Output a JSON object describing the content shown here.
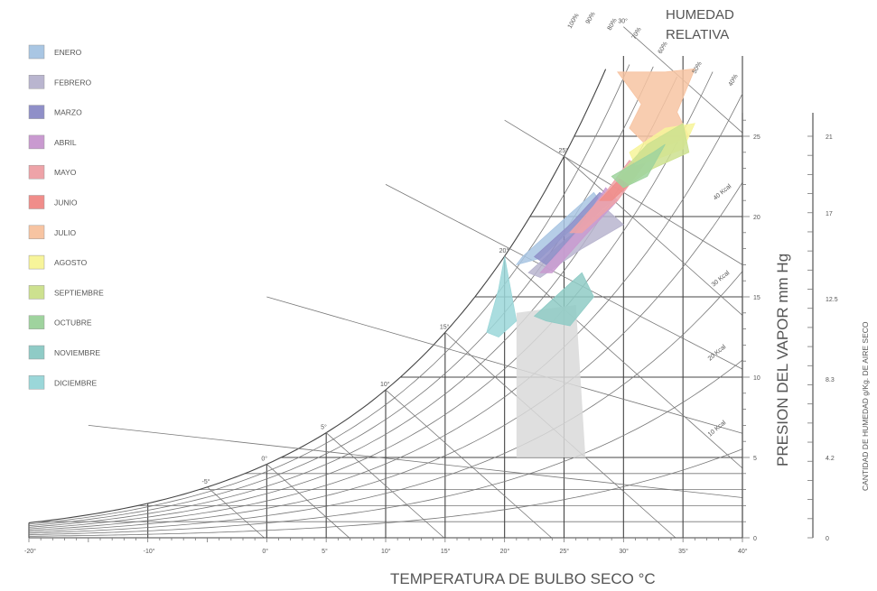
{
  "chart_data": {
    "type": "psychrometric",
    "title": "",
    "xlabel": "TEMPERATURA  DE  BULBO  SECO °C",
    "ylabel_right": "PRESION DEL VAPOR   mm  Hg",
    "ylabel_far_right": "CANTIDAD DE HUMEDAD  g/Kg. DE AIRE SECO",
    "rh_title": [
      "HUMEDAD",
      "RELATIVA"
    ],
    "x_ticks": [
      {
        "value": -20,
        "label": "-20°"
      },
      {
        "value": -10,
        "label": "-10°"
      },
      {
        "value": 0,
        "label": "0°"
      },
      {
        "value": 5,
        "label": "5°"
      },
      {
        "value": 10,
        "label": "10°"
      },
      {
        "value": 15,
        "label": "15°"
      },
      {
        "value": 20,
        "label": "20°"
      },
      {
        "value": 25,
        "label": "25°"
      },
      {
        "value": 30,
        "label": "30°"
      },
      {
        "value": 35,
        "label": "35°"
      },
      {
        "value": 40,
        "label": "40°"
      }
    ],
    "xlim": [
      -20,
      40
    ],
    "ylim": [
      0,
      30
    ],
    "vapor_pressure_ticks": [
      {
        "value": 0,
        "label": "0"
      },
      {
        "value": 5,
        "label": "5"
      },
      {
        "value": 10,
        "label": "10"
      },
      {
        "value": 15,
        "label": "15"
      },
      {
        "value": 20,
        "label": "20"
      },
      {
        "value": 25,
        "label": "25"
      }
    ],
    "moisture_ticks": [
      {
        "value": 0,
        "label": "0"
      },
      {
        "value": 4.2,
        "label": "4.2"
      },
      {
        "value": 8.3,
        "label": "8.3"
      },
      {
        "value": 12.5,
        "label": "12.5"
      },
      {
        "value": 17,
        "label": "17"
      },
      {
        "value": 21,
        "label": "21"
      }
    ],
    "wet_bulb_labels": [
      {
        "t": -5,
        "label": "-5°"
      },
      {
        "t": 0,
        "label": "0°"
      },
      {
        "t": 5,
        "label": "5°"
      },
      {
        "t": 10,
        "label": "10°"
      },
      {
        "t": 15,
        "label": "15°"
      },
      {
        "t": 20,
        "label": "20°"
      },
      {
        "t": 25,
        "label": "25°"
      },
      {
        "t": 30,
        "label": "30°"
      }
    ],
    "rh_line_labels": [
      "100%",
      "90%",
      "80%",
      "70%",
      "60%",
      "50%",
      "40%"
    ],
    "enthalpy_labels": [
      "40 Kcal",
      "30 Kcal",
      "20 Kcal",
      "10 Kcal"
    ],
    "comfort_zone": {
      "t_min": 21,
      "t_max": 26,
      "p_min": 5,
      "p_max": 14,
      "color": "#d9d9d9"
    },
    "series": [
      {
        "name": "ENERO",
        "color": "#a9c6e3",
        "polygon": [
          [
            21.5,
            17.5
          ],
          [
            24.5,
            19.5
          ],
          [
            27.5,
            21.5
          ],
          [
            28,
            21
          ],
          [
            26,
            19.5
          ],
          [
            23,
            17.4
          ],
          [
            21,
            17
          ]
        ]
      },
      {
        "name": "FEBRERO",
        "color": "#b9b5cf",
        "polygon": [
          [
            22,
            16.5
          ],
          [
            25,
            18.5
          ],
          [
            28.5,
            20.5
          ],
          [
            30,
            19.5
          ],
          [
            26.5,
            18
          ],
          [
            23,
            16.2
          ]
        ]
      },
      {
        "name": "MARZO",
        "color": "#8f8fc8",
        "polygon": [
          [
            22.5,
            17.5
          ],
          [
            25.5,
            19.5
          ],
          [
            28,
            21.5
          ],
          [
            29,
            21
          ],
          [
            26,
            19
          ],
          [
            23.5,
            17
          ]
        ]
      },
      {
        "name": "ABRIL",
        "color": "#c99ad0",
        "polygon": [
          [
            23,
            16.5
          ],
          [
            26,
            19
          ],
          [
            28.5,
            21.8
          ],
          [
            29.5,
            21
          ],
          [
            27,
            19
          ],
          [
            24,
            16.5
          ]
        ]
      },
      {
        "name": "MAYO",
        "color": "#eea3a8",
        "polygon": [
          [
            25.5,
            19
          ],
          [
            28.5,
            21.5
          ],
          [
            30.5,
            23.5
          ],
          [
            31.5,
            23
          ],
          [
            29.5,
            21
          ],
          [
            26.5,
            19
          ]
        ]
      },
      {
        "name": "JUNIO",
        "color": "#f08d8a",
        "polygon": [
          [
            28,
            21
          ],
          [
            30.5,
            23
          ],
          [
            32,
            24.5
          ],
          [
            32.5,
            24
          ],
          [
            30.5,
            22
          ],
          [
            29,
            21
          ]
        ]
      },
      {
        "name": "JULIO",
        "color": "#f7c4a2",
        "polygon": [
          [
            29.5,
            29
          ],
          [
            33.5,
            29
          ],
          [
            36,
            29.2
          ],
          [
            34.5,
            26.5
          ],
          [
            35.5,
            25
          ],
          [
            32.5,
            24
          ],
          [
            30.5,
            25.5
          ],
          [
            31.5,
            27
          ]
        ]
      },
      {
        "name": "AGOSTO",
        "color": "#f7f49a",
        "polygon": [
          [
            30.5,
            24
          ],
          [
            33.5,
            25.5
          ],
          [
            36,
            25.8
          ],
          [
            35,
            24.2
          ],
          [
            32.5,
            23.5
          ],
          [
            31,
            23.2
          ]
        ]
      },
      {
        "name": "SEPTIEMBRE",
        "color": "#cde18f",
        "polygon": [
          [
            29.5,
            22.5
          ],
          [
            32,
            24.5
          ],
          [
            35,
            25.8
          ],
          [
            35.5,
            24
          ],
          [
            32.5,
            23
          ],
          [
            30.5,
            22
          ]
        ]
      },
      {
        "name": "OCTUBRE",
        "color": "#9fd39e",
        "polygon": [
          [
            29,
            22.5
          ],
          [
            32.5,
            24
          ],
          [
            33.5,
            24.5
          ],
          [
            32,
            22.5
          ],
          [
            30,
            21.8
          ]
        ]
      },
      {
        "name": "NOVIEMBRE",
        "color": "#8fcbc6",
        "polygon": [
          [
            25,
            15.5
          ],
          [
            26.5,
            16.5
          ],
          [
            27.5,
            15
          ],
          [
            25.5,
            13.2
          ],
          [
            23.5,
            13.5
          ],
          [
            22.5,
            13.8
          ]
        ]
      },
      {
        "name": "DICIEMBRE",
        "color": "#9bd7d9",
        "polygon": [
          [
            19.5,
            15.5
          ],
          [
            20,
            17.5
          ],
          [
            21,
            13.5
          ],
          [
            19.5,
            12.5
          ],
          [
            18.5,
            12.8
          ]
        ]
      }
    ]
  }
}
